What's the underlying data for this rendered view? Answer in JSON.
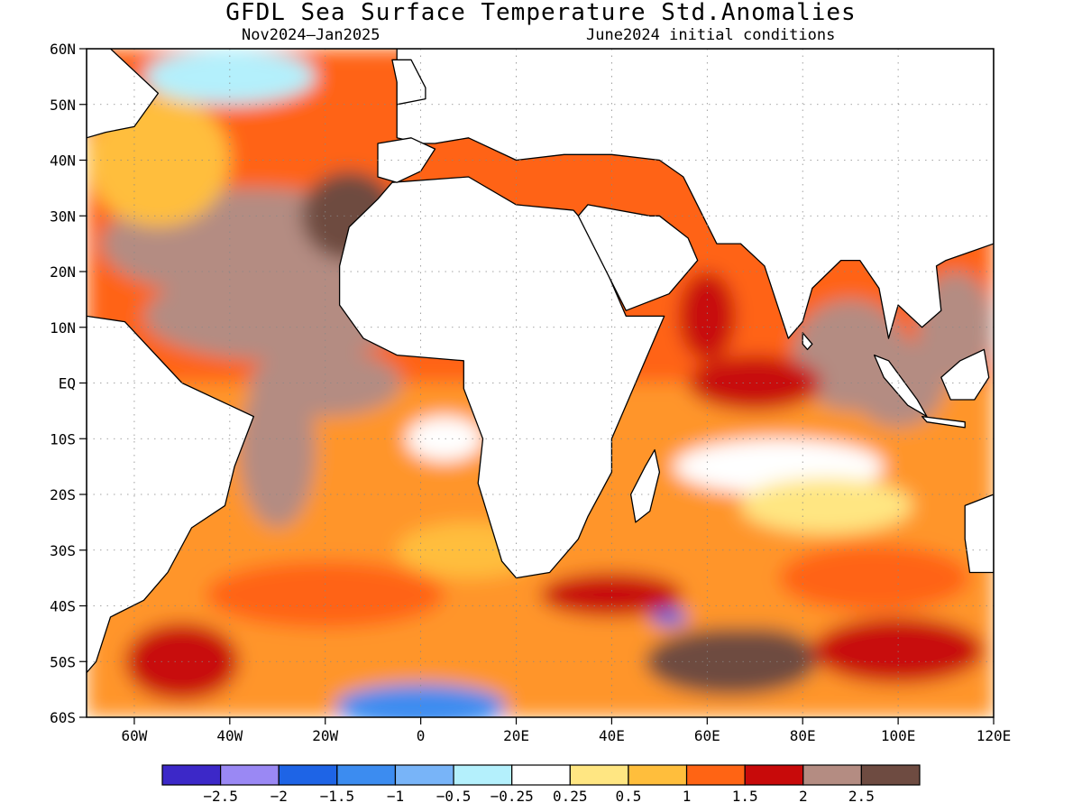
{
  "title": "GFDL Sea Surface Temperature Std.Anomalies",
  "subtitle_left": "Nov2024–Jan2025",
  "subtitle_right": "June2024 initial conditions",
  "lat_labels": [
    "60N",
    "50N",
    "40N",
    "30N",
    "20N",
    "10N",
    "EQ",
    "10S",
    "20S",
    "30S",
    "40S",
    "50S",
    "60S"
  ],
  "lat_values": [
    60,
    50,
    40,
    30,
    20,
    10,
    0,
    -10,
    -20,
    -30,
    -40,
    -50,
    -60
  ],
  "lon_labels": [
    "60W",
    "40W",
    "20W",
    "0",
    "20E",
    "40E",
    "60E",
    "80E",
    "100E",
    "120E"
  ],
  "lon_values": [
    -60,
    -40,
    -20,
    0,
    20,
    40,
    60,
    80,
    100,
    120
  ],
  "map_extent": {
    "lon_min": -70,
    "lon_max": 120,
    "lat_min": -60,
    "lat_max": 60
  },
  "colorbar": {
    "colors": [
      "#3c28c8",
      "#9a88f4",
      "#1e64e6",
      "#3c8cf0",
      "#78b4f8",
      "#b4f0fc",
      "#ffffff",
      "#ffe682",
      "#ffbe3c",
      "#ff6414",
      "#c80a0a",
      "#b48c82",
      "#6e4b41"
    ],
    "labels": [
      "−2.5",
      "−2",
      "−1.5",
      "−1",
      "−0.5",
      "−0.25",
      "0.25",
      "0.5",
      "1",
      "1.5",
      "2",
      "2.5"
    ]
  },
  "anomaly_regions": [
    {
      "lon": -35,
      "lat": 25,
      "rx": 32,
      "ry": 10,
      "level": 11
    },
    {
      "lon": -30,
      "lat": 12,
      "rx": 28,
      "ry": 8,
      "level": 11
    },
    {
      "lon": -20,
      "lat": 0,
      "rx": 16,
      "ry": 6,
      "level": 11
    },
    {
      "lon": -30,
      "lat": -12,
      "rx": 8,
      "ry": 14,
      "level": 11
    },
    {
      "lon": 65,
      "lat": -50,
      "rx": 18,
      "ry": 6,
      "level": 12
    },
    {
      "lon": 70,
      "lat": -48,
      "rx": 12,
      "ry": 4,
      "level": 12
    },
    {
      "lon": -15,
      "lat": 30,
      "rx": 10,
      "ry": 8,
      "level": 12
    },
    {
      "lon": -55,
      "lat": 40,
      "rx": 15,
      "ry": 12,
      "level": 8
    },
    {
      "lon": -40,
      "lat": 55,
      "rx": 18,
      "ry": 5,
      "level": 5
    },
    {
      "lon": 75,
      "lat": -15,
      "rx": 22,
      "ry": 5,
      "level": 6
    },
    {
      "lon": 85,
      "lat": -22,
      "rx": 18,
      "ry": 5,
      "level": 7
    },
    {
      "lon": 5,
      "lat": -10,
      "rx": 8,
      "ry": 4,
      "level": 6
    },
    {
      "lon": 0,
      "lat": -58,
      "rx": 18,
      "ry": 4,
      "level": 3
    },
    {
      "lon": 52,
      "lat": -42,
      "rx": 4,
      "ry": 1.5,
      "level": 2
    },
    {
      "lon": 90,
      "lat": 5,
      "rx": 12,
      "ry": 10,
      "level": 11
    },
    {
      "lon": 100,
      "lat": 0,
      "rx": 10,
      "ry": 8,
      "level": 11
    },
    {
      "lon": 112,
      "lat": 10,
      "rx": 8,
      "ry": 10,
      "level": 11
    },
    {
      "lon": 95,
      "lat": -35,
      "rx": 20,
      "ry": 6,
      "level": 9
    },
    {
      "lon": -20,
      "lat": -38,
      "rx": 25,
      "ry": 6,
      "level": 9
    },
    {
      "lon": 10,
      "lat": -30,
      "rx": 15,
      "ry": 5,
      "level": 8
    },
    {
      "lon": 40,
      "lat": -38,
      "rx": 15,
      "ry": 4,
      "level": 10
    },
    {
      "lon": -50,
      "lat": -50,
      "rx": 12,
      "ry": 7,
      "level": 10
    },
    {
      "lon": 100,
      "lat": -48,
      "rx": 18,
      "ry": 6,
      "level": 10
    },
    {
      "lon": 60,
      "lat": 12,
      "rx": 6,
      "ry": 8,
      "level": 10
    },
    {
      "lon": 70,
      "lat": 0,
      "rx": 14,
      "ry": 5,
      "level": 10
    }
  ],
  "landmasses": [
    {
      "name": "africa",
      "points": [
        [
          -17,
          21
        ],
        [
          -15,
          28
        ],
        [
          -9,
          33
        ],
        [
          -6,
          36
        ],
        [
          10,
          37
        ],
        [
          20,
          32
        ],
        [
          32,
          31
        ],
        [
          35,
          28
        ],
        [
          43,
          12
        ],
        [
          51,
          12
        ],
        [
          44,
          -2
        ],
        [
          40,
          -10
        ],
        [
          40,
          -16
        ],
        [
          35,
          -24
        ],
        [
          33,
          -28
        ],
        [
          27,
          -34
        ],
        [
          20,
          -35
        ],
        [
          17,
          -32
        ],
        [
          12,
          -18
        ],
        [
          13,
          -10
        ],
        [
          9,
          -1
        ],
        [
          9,
          4
        ],
        [
          -5,
          5
        ],
        [
          -12,
          8
        ],
        [
          -17,
          14
        ]
      ]
    },
    {
      "name": "arabia",
      "points": [
        [
          33,
          30
        ],
        [
          43,
          13
        ],
        [
          52,
          16
        ],
        [
          58,
          22
        ],
        [
          56,
          26
        ],
        [
          50,
          30
        ],
        [
          48,
          30
        ],
        [
          35,
          32
        ]
      ]
    },
    {
      "name": "india",
      "points": [
        [
          67,
          25
        ],
        [
          72,
          21
        ],
        [
          77,
          8
        ],
        [
          80,
          11
        ],
        [
          82,
          17
        ],
        [
          88,
          22
        ],
        [
          92,
          22
        ],
        [
          96,
          17
        ],
        [
          98,
          8
        ],
        [
          100,
          14
        ],
        [
          105,
          10
        ],
        [
          109,
          13
        ],
        [
          108,
          21
        ],
        [
          110,
          22
        ],
        [
          120,
          25
        ],
        [
          120,
          60
        ],
        [
          -5,
          60
        ],
        [
          -5,
          44
        ],
        [
          0,
          43
        ],
        [
          3,
          43
        ],
        [
          10,
          44
        ],
        [
          20,
          40
        ],
        [
          30,
          41
        ],
        [
          40,
          41
        ],
        [
          50,
          40
        ],
        [
          55,
          37
        ],
        [
          62,
          25
        ]
      ]
    },
    {
      "name": "iberia",
      "points": [
        [
          -9,
          43
        ],
        [
          -9,
          37
        ],
        [
          -5,
          36
        ],
        [
          0,
          38
        ],
        [
          3,
          42
        ],
        [
          -2,
          44
        ]
      ]
    },
    {
      "name": "britain",
      "points": [
        [
          -5,
          50
        ],
        [
          1,
          51
        ],
        [
          1,
          53
        ],
        [
          -2,
          58
        ],
        [
          -6,
          58
        ],
        [
          -5,
          54
        ]
      ]
    },
    {
      "name": "south_america",
      "points": [
        [
          -70,
          12
        ],
        [
          -62,
          11
        ],
        [
          -50,
          0
        ],
        [
          -35,
          -6
        ],
        [
          -39,
          -15
        ],
        [
          -41,
          -22
        ],
        [
          -48,
          -26
        ],
        [
          -53,
          -34
        ],
        [
          -58,
          -39
        ],
        [
          -65,
          -42
        ],
        [
          -68,
          -50
        ],
        [
          -70,
          -52
        ],
        [
          -70,
          12
        ]
      ]
    },
    {
      "name": "north_america",
      "points": [
        [
          -70,
          44
        ],
        [
          -66,
          45
        ],
        [
          -60,
          46
        ],
        [
          -55,
          52
        ],
        [
          -60,
          56
        ],
        [
          -65,
          60
        ],
        [
          -70,
          60
        ]
      ]
    },
    {
      "name": "madagascar",
      "points": [
        [
          49,
          -12
        ],
        [
          50,
          -16
        ],
        [
          48,
          -23
        ],
        [
          45,
          -25
        ],
        [
          44,
          -20
        ],
        [
          47,
          -15
        ]
      ]
    },
    {
      "name": "sumatra",
      "points": [
        [
          95,
          5
        ],
        [
          98,
          4
        ],
        [
          104,
          -3
        ],
        [
          106,
          -6
        ],
        [
          102,
          -4
        ],
        [
          97,
          1
        ]
      ]
    },
    {
      "name": "java",
      "points": [
        [
          105,
          -6
        ],
        [
          114,
          -7
        ],
        [
          114,
          -8
        ],
        [
          106,
          -7
        ]
      ]
    },
    {
      "name": "borneo",
      "points": [
        [
          109,
          1
        ],
        [
          113,
          4
        ],
        [
          118,
          6
        ],
        [
          119,
          1
        ],
        [
          116,
          -3
        ],
        [
          111,
          -3
        ]
      ]
    },
    {
      "name": "australia",
      "points": [
        [
          114,
          -22
        ],
        [
          120,
          -20
        ],
        [
          120,
          -34
        ],
        [
          115,
          -34
        ],
        [
          114,
          -28
        ]
      ]
    },
    {
      "name": "sri_lanka",
      "points": [
        [
          80,
          9
        ],
        [
          82,
          7
        ],
        [
          81,
          6
        ],
        [
          80,
          7
        ]
      ]
    }
  ]
}
